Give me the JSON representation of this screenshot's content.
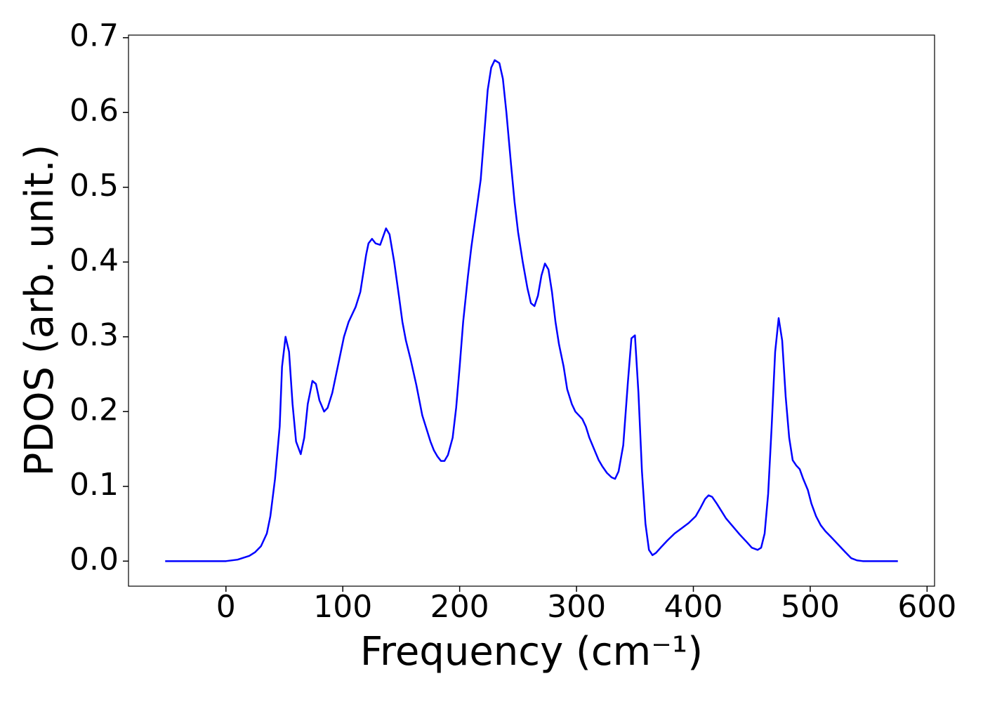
{
  "chart_data": {
    "type": "line",
    "xlabel": "Frequency (cm⁻¹)",
    "ylabel": "PDOS (arb. unit.)",
    "x": [
      -52,
      0,
      10,
      20,
      25,
      30,
      35,
      38,
      42,
      46,
      48,
      51,
      54,
      57,
      60,
      64,
      67,
      70,
      74,
      77,
      80,
      84,
      87,
      91,
      97,
      101,
      105,
      111,
      115,
      120,
      122,
      125,
      128,
      132,
      137,
      140,
      144,
      148,
      151,
      154,
      158,
      163,
      168,
      172,
      175,
      178,
      181,
      184,
      187,
      190,
      194,
      197,
      200,
      203,
      207,
      210,
      214,
      218,
      221,
      224,
      227,
      230,
      234,
      237,
      240,
      244,
      247,
      250,
      254,
      258,
      261,
      264,
      267,
      270,
      273,
      276,
      279,
      282,
      285,
      289,
      292,
      296,
      299,
      305,
      308,
      311,
      315,
      319,
      322,
      326,
      330,
      333,
      336,
      340,
      344,
      347,
      350,
      353,
      356,
      359,
      362,
      365,
      368,
      372,
      378,
      384,
      390,
      396,
      402,
      406,
      410,
      413,
      416,
      420,
      424,
      428,
      434,
      440,
      446,
      450,
      455,
      458,
      461,
      464,
      467,
      470,
      473,
      476,
      479,
      482,
      485,
      488,
      491,
      494,
      498,
      501,
      505,
      509,
      513,
      518,
      524,
      530,
      535,
      540,
      545,
      575
    ],
    "series": [
      {
        "name": "PDOS",
        "color": "#0000ff",
        "values": [
          0,
          0,
          0.002,
          0.007,
          0.012,
          0.02,
          0.037,
          0.06,
          0.11,
          0.18,
          0.26,
          0.3,
          0.28,
          0.21,
          0.16,
          0.143,
          0.165,
          0.21,
          0.241,
          0.237,
          0.215,
          0.2,
          0.205,
          0.225,
          0.27,
          0.3,
          0.32,
          0.34,
          0.36,
          0.41,
          0.425,
          0.431,
          0.425,
          0.423,
          0.445,
          0.437,
          0.4,
          0.355,
          0.32,
          0.295,
          0.27,
          0.235,
          0.195,
          0.175,
          0.16,
          0.148,
          0.14,
          0.134,
          0.134,
          0.142,
          0.165,
          0.205,
          0.26,
          0.32,
          0.38,
          0.42,
          0.465,
          0.51,
          0.57,
          0.63,
          0.66,
          0.67,
          0.666,
          0.645,
          0.6,
          0.53,
          0.48,
          0.44,
          0.4,
          0.365,
          0.345,
          0.341,
          0.355,
          0.382,
          0.398,
          0.39,
          0.36,
          0.32,
          0.29,
          0.26,
          0.23,
          0.21,
          0.2,
          0.19,
          0.18,
          0.165,
          0.15,
          0.135,
          0.127,
          0.118,
          0.112,
          0.11,
          0.12,
          0.155,
          0.24,
          0.298,
          0.302,
          0.225,
          0.12,
          0.05,
          0.015,
          0.008,
          0.011,
          0.018,
          0.028,
          0.037,
          0.044,
          0.051,
          0.06,
          0.071,
          0.083,
          0.088,
          0.086,
          0.077,
          0.067,
          0.057,
          0.046,
          0.035,
          0.025,
          0.018,
          0.015,
          0.018,
          0.037,
          0.09,
          0.18,
          0.28,
          0.325,
          0.295,
          0.22,
          0.165,
          0.135,
          0.128,
          0.123,
          0.11,
          0.095,
          0.077,
          0.06,
          0.048,
          0.04,
          0.032,
          0.022,
          0.012,
          0.004,
          0.001,
          0,
          0
        ]
      }
    ],
    "xlim": [
      -83.4,
      606.4
    ],
    "ylim": [
      -0.0335,
      0.7035
    ],
    "xticks": [
      0,
      100,
      200,
      300,
      400,
      500,
      600
    ],
    "yticks": [
      {
        "value": 0,
        "label": "0.0"
      },
      0.1,
      0.2,
      0.3,
      0.4,
      0.5,
      0.6,
      0.7
    ],
    "grid": false
  }
}
